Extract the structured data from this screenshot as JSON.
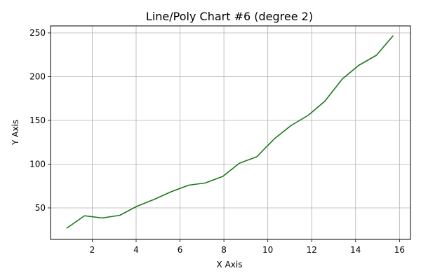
{
  "chart_data": {
    "type": "line",
    "title": "Line/Poly Chart #6 (degree 2)",
    "xlabel": "X Axis",
    "ylabel": "Y Axis",
    "xlim": [
      0.1,
      16.5
    ],
    "ylim": [
      14,
      258
    ],
    "xticks": [
      2,
      4,
      6,
      8,
      10,
      12,
      14,
      16
    ],
    "yticks": [
      50,
      100,
      150,
      200,
      250
    ],
    "grid": true,
    "series": [
      {
        "color": "#1a7a1a",
        "x": [
          0.85,
          1.65,
          2.45,
          3.25,
          4.05,
          4.8,
          5.6,
          6.4,
          7.15,
          7.95,
          8.7,
          9.5,
          10.3,
          11.05,
          11.85,
          12.6,
          13.4,
          14.15,
          14.95,
          15.7
        ],
        "y": [
          27,
          41,
          38.5,
          41.5,
          52,
          59.5,
          68.5,
          76,
          78.5,
          86,
          101,
          108.5,
          129,
          144,
          156,
          172,
          197.5,
          213,
          224.5,
          246.5
        ]
      }
    ]
  }
}
